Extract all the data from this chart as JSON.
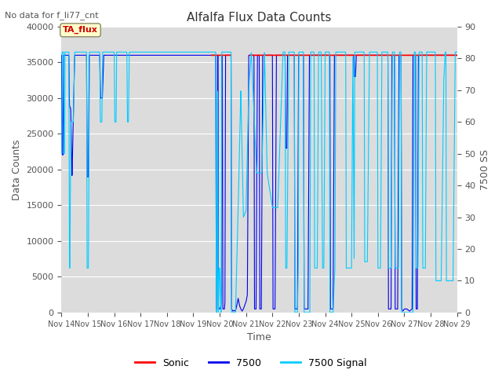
{
  "title": "Alfalfa Flux Data Counts",
  "subtitle": "No data for f_li77_cnt",
  "xlabel": "Time",
  "ylabel_left": "Data Counts",
  "ylabel_right": "7500 SS",
  "ylim_left": [
    0,
    40000
  ],
  "ylim_right": [
    0,
    90
  ],
  "yticks_left": [
    0,
    5000,
    10000,
    15000,
    20000,
    25000,
    30000,
    35000,
    40000
  ],
  "yticks_right": [
    0,
    10,
    20,
    30,
    40,
    50,
    60,
    70,
    80,
    90
  ],
  "legend_entries": [
    "Sonic",
    "7500",
    "7500 Signal"
  ],
  "legend_colors": [
    "#ff0000",
    "#0000ee",
    "#00ccff"
  ],
  "annotation_text": "TA_flux",
  "annotation_color": "#cc0000",
  "annotation_bg": "#ffffcc",
  "bg_color": "#dcdcdc",
  "grid_color": "#c8c8c8",
  "sonic_color": "#ff0000",
  "count_7500_color": "#0000ee",
  "signal_7500_color": "#00ccff",
  "title_fontsize": 11,
  "axis_label_fontsize": 9,
  "tick_fontsize": 8,
  "subtitle_fontsize": 8
}
